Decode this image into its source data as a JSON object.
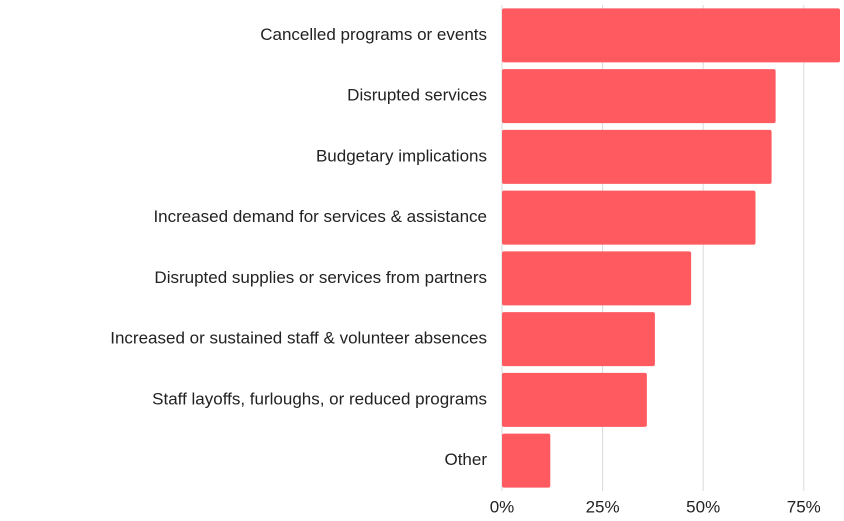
{
  "chart_data": {
    "type": "bar",
    "orientation": "horizontal",
    "categories": [
      "Cancelled programs or events",
      "Disrupted services",
      "Budgetary implications",
      "Increased demand for services & assistance",
      "Disrupted supplies or services from partners",
      "Increased or sustained staff & volunteer absences",
      "Staff layoffs, furloughs, or reduced programs",
      "Other"
    ],
    "values": [
      84,
      68,
      67,
      63,
      47,
      38,
      36,
      12
    ],
    "color": "#ff5a5f",
    "xlim": [
      0,
      84
    ],
    "xticks": [
      {
        "value": 0,
        "label": "0%"
      },
      {
        "value": 25,
        "label": "25%"
      },
      {
        "value": 50,
        "label": "50%"
      },
      {
        "value": 75,
        "label": "75%"
      }
    ],
    "grid": true
  }
}
